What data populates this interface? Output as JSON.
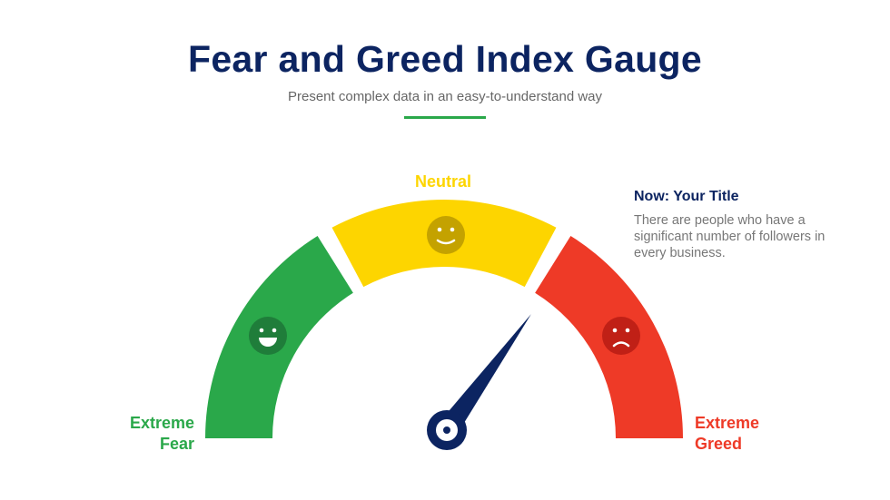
{
  "header": {
    "title": "Fear and Greed Index Gauge",
    "subtitle": "Present complex data in an easy-to-understand way",
    "accent_color": "#2aa84a"
  },
  "gauge": {
    "segments": [
      {
        "label": "Extreme Fear",
        "color": "#2aa84a",
        "face_color": "#1f7d3a",
        "face": "laughing-face-icon"
      },
      {
        "label": "Neutral",
        "color": "#fdd500",
        "face_color": "#c4a200",
        "face": "smiling-face-icon"
      },
      {
        "label": "Extreme Greed",
        "color": "#ee3a27",
        "face_color": "#c02016",
        "face": "sad-face-icon"
      }
    ],
    "label_lines": {
      "fear": [
        "Extreme",
        "Fear"
      ],
      "neutral": "Neutral",
      "greed": [
        "Extreme",
        "Greed"
      ]
    },
    "needle_value_percent": 70,
    "needle_color": "#0c2461"
  },
  "side": {
    "title": "Now: Your Title",
    "text": "There are people who have a significant number of followers in every business."
  }
}
